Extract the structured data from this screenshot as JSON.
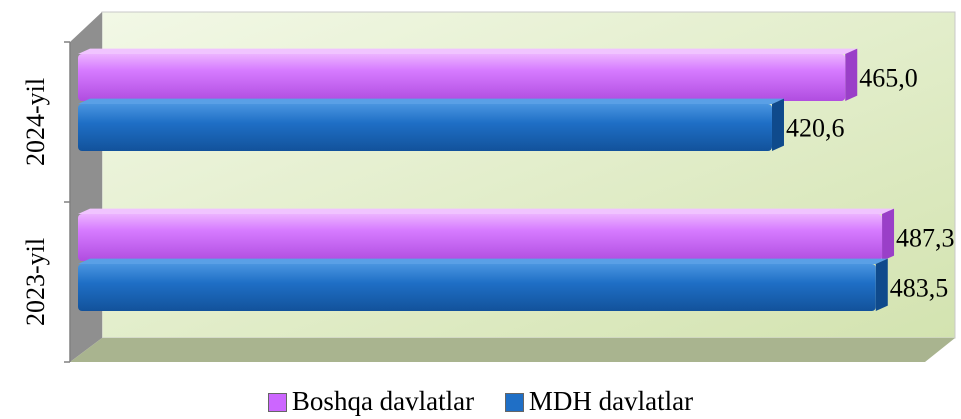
{
  "chart_data": {
    "type": "bar",
    "orientation": "horizontal",
    "style": "3d",
    "categories": [
      "2023-yil",
      "2024-yil"
    ],
    "series": [
      {
        "name": "MDH davlatlar",
        "values": [
          483.5,
          420.6
        ],
        "labels": [
          "483,5",
          "420,6"
        ],
        "color": "#1f6fc6"
      },
      {
        "name": "Boshqa davlatlar",
        "values": [
          487.3,
          465.0
        ],
        "labels": [
          "487,3",
          "465,0"
        ],
        "color": "#cc66ff"
      }
    ],
    "xlim": [
      0,
      540
    ],
    "grid": false,
    "legend": "bottom",
    "legend_order": [
      "Boshqa davlatlar",
      "MDH davlatlar"
    ],
    "colors": {
      "wall_top": "#e7f1d2",
      "wall_bottom": "#d6e6b4",
      "floor": "#aab590",
      "side_wall": "#8c8c8c"
    }
  }
}
